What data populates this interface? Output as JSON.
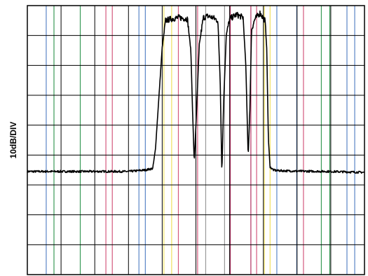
{
  "chart_data": {
    "type": "line",
    "ylabel": "10dB/DIV",
    "grid": true,
    "divisions": {
      "x": 10,
      "y": 9
    },
    "ylim": [
      0,
      9
    ],
    "xlim": [
      0,
      10
    ],
    "vertical_markers": [
      {
        "x": 0.56,
        "color": "#5b86c7"
      },
      {
        "x": 0.79,
        "color": "#3a9a58"
      },
      {
        "x": 1.57,
        "color": "#3a9a58"
      },
      {
        "x": 2.33,
        "color": "#d45a7e"
      },
      {
        "x": 2.52,
        "color": "#d45a7e"
      },
      {
        "x": 3.31,
        "color": "#5b86c7"
      },
      {
        "x": 3.5,
        "color": "#5b86c7"
      },
      {
        "x": 4.05,
        "color": "#f0e060"
      },
      {
        "x": 4.28,
        "color": "#f0e060"
      },
      {
        "x": 4.48,
        "color": "#d45a7e"
      },
      {
        "x": 5.05,
        "color": "#d45a7e"
      },
      {
        "x": 5.29,
        "color": "#999999"
      },
      {
        "x": 5.85,
        "color": "#999999"
      },
      {
        "x": 6.02,
        "color": "#b03060"
      },
      {
        "x": 6.63,
        "color": "#b03060"
      },
      {
        "x": 6.8,
        "color": "#d45a7e"
      },
      {
        "x": 7.03,
        "color": "#f0e060"
      },
      {
        "x": 7.2,
        "color": "#f0e060"
      },
      {
        "x": 7.4,
        "color": "#5b86c7"
      },
      {
        "x": 7.99,
        "color": "#5b86c7"
      },
      {
        "x": 8.19,
        "color": "#d45a7e"
      },
      {
        "x": 8.72,
        "color": "#3a9a58"
      },
      {
        "x": 8.97,
        "color": "#3a9a58"
      },
      {
        "x": 9.48,
        "color": "#5b86c7"
      },
      {
        "x": 9.71,
        "color": "#5b86c7"
      }
    ],
    "series": [
      {
        "line_color": "#000000",
        "x": [
          0.0,
          1.0,
          2.0,
          3.0,
          3.5,
          3.72,
          3.8,
          4.0,
          4.1,
          4.25,
          4.5,
          4.75,
          4.85,
          4.9,
          4.95,
          5.02,
          5.1,
          5.22,
          5.35,
          5.5,
          5.65,
          5.72,
          5.77,
          5.82,
          5.9,
          6.0,
          6.2,
          6.4,
          6.48,
          6.55,
          6.6,
          6.65,
          6.75,
          6.9,
          7.05,
          7.1,
          7.15,
          7.2,
          7.3,
          7.4,
          8.0,
          9.0,
          10.0
        ],
        "y": [
          3.45,
          3.45,
          3.45,
          3.45,
          3.5,
          3.55,
          4.2,
          7.6,
          8.5,
          8.55,
          8.6,
          8.55,
          7.5,
          5.5,
          3.75,
          5.5,
          7.7,
          8.6,
          8.65,
          8.6,
          8.5,
          6.5,
          3.4,
          5.7,
          8.0,
          8.55,
          8.7,
          8.6,
          7.0,
          3.95,
          5.5,
          8.2,
          8.55,
          8.75,
          8.5,
          7.6,
          4.5,
          3.6,
          3.5,
          3.48,
          3.46,
          3.45,
          3.42
        ]
      }
    ]
  }
}
